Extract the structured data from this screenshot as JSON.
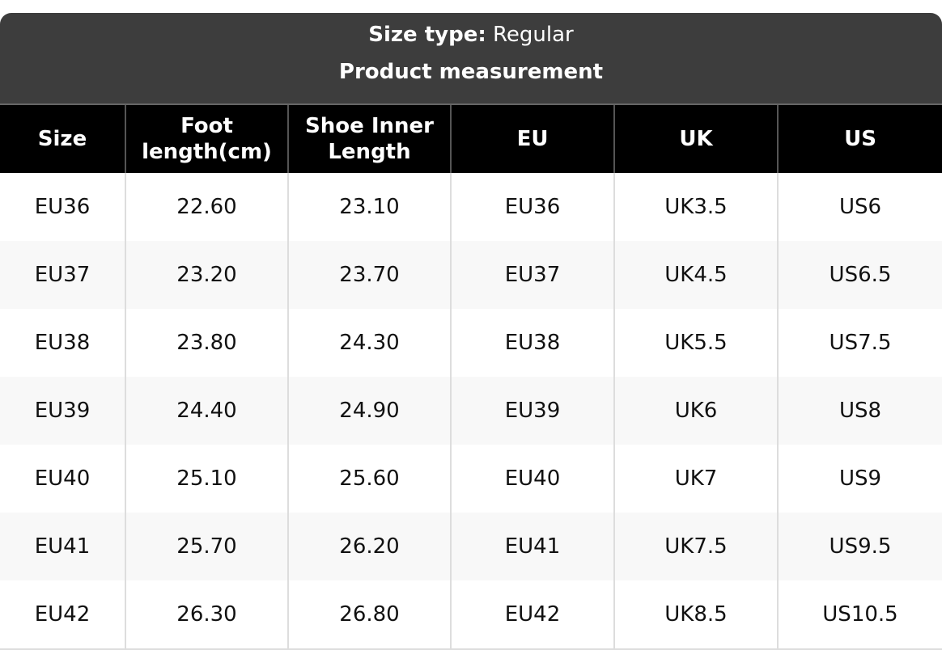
{
  "size_type_label": "Size type:",
  "size_type_value": "Regular",
  "subtitle": "Product measurement",
  "columns": [
    "Size",
    "Foot length(cm)",
    "Shoe Inner Length",
    "EU",
    "UK",
    "US"
  ],
  "rows": [
    [
      "EU36",
      "22.60",
      "23.10",
      "EU36",
      "UK3.5",
      "US6"
    ],
    [
      "EU37",
      "23.20",
      "23.70",
      "EU37",
      "UK4.5",
      "US6.5"
    ],
    [
      "EU38",
      "23.80",
      "24.30",
      "EU38",
      "UK5.5",
      "US7.5"
    ],
    [
      "EU39",
      "24.40",
      "24.90",
      "EU39",
      "UK6",
      "US8"
    ],
    [
      "EU40",
      "25.10",
      "25.60",
      "EU40",
      "UK7",
      "US9"
    ],
    [
      "EU41",
      "25.70",
      "26.20",
      "EU41",
      "UK7.5",
      "US9.5"
    ],
    [
      "EU42",
      "26.30",
      "26.80",
      "EU42",
      "UK8.5",
      "US10.5"
    ]
  ]
}
